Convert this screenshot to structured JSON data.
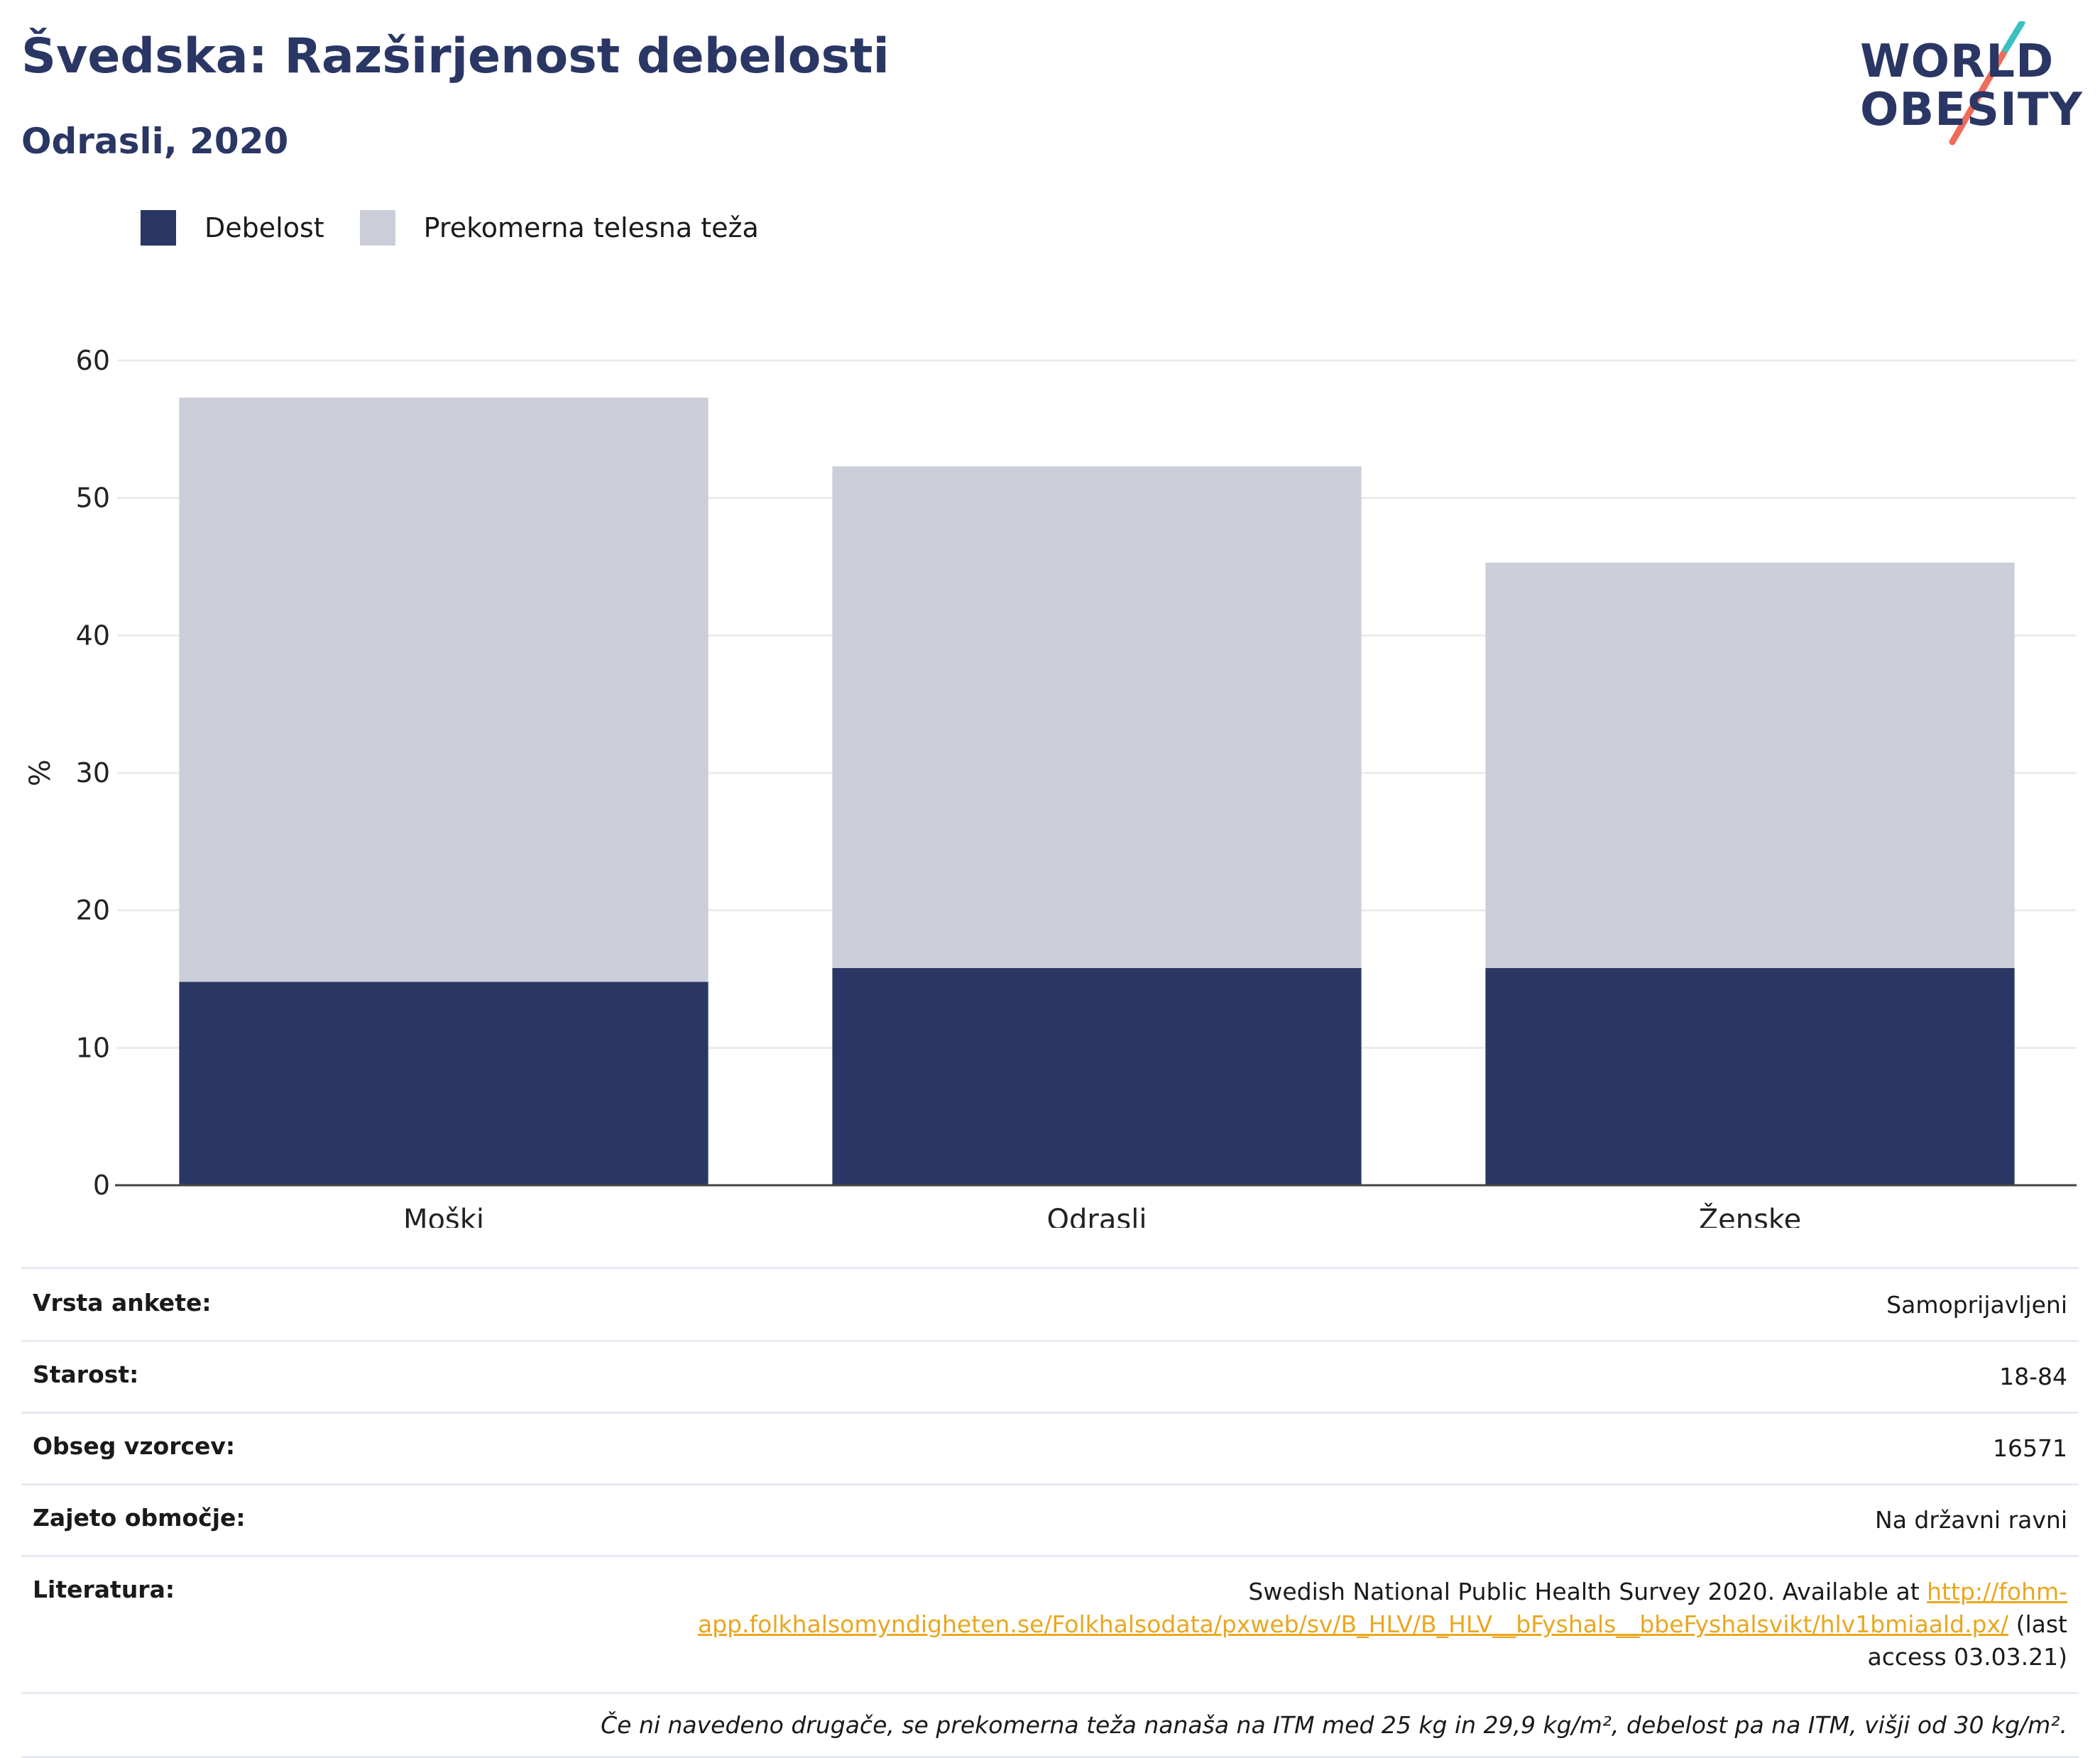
{
  "header": {
    "title": "Švedska: Razširjenost debelosti",
    "subtitle": "Odrasli, 2020"
  },
  "logo": {
    "line1": "WORLD",
    "line2": "OBESITY"
  },
  "colors": {
    "obesity": "#2a3764",
    "overweight": "#cbcdd9",
    "link": "#e9a720",
    "accent_teal": "#3bbfbf",
    "accent_coral": "#ef6b5a"
  },
  "chart_data": {
    "type": "bar",
    "stacked": true,
    "categories": [
      "Moški",
      "Odrasli",
      "Ženske"
    ],
    "series": [
      {
        "name": "Debelost",
        "values": [
          14.8,
          15.8,
          15.8
        ]
      },
      {
        "name": "Prekomerna telesna teža",
        "values": [
          42.5,
          36.5,
          29.5
        ]
      }
    ],
    "ylabel": "%",
    "ylim": [
      0,
      60
    ],
    "yticks": [
      0,
      10,
      20,
      30,
      40,
      50,
      60
    ],
    "grid": true,
    "legend": "top-left"
  },
  "info": {
    "rows": [
      {
        "label": "Vrsta ankete:",
        "value": "Samoprijavljeni"
      },
      {
        "label": "Starost:",
        "value": "18-84"
      },
      {
        "label": "Obseg vzorcev:",
        "value": "16571"
      },
      {
        "label": "Zajeto območje:",
        "value": "Na državni ravni"
      }
    ],
    "literature_label": "Literatura:",
    "literature_text": "Swedish National Public Health Survey 2020. Available at ",
    "literature_link": "http://fohm-app.folkhalsomyndigheten.se/Folkhalsodata/pxweb/sv/B_HLV/B_HLV__bFyshals__bbeFyshalsvikt/hlv1bmiaald.px/",
    "literature_tail": " (last access 03.03.21)",
    "note": "Če ni navedeno drugače, se prekomerna teža nanaša na ITM med 25 kg in 29,9 kg/m², debelost pa na ITM, višji od 30 kg/m²."
  }
}
